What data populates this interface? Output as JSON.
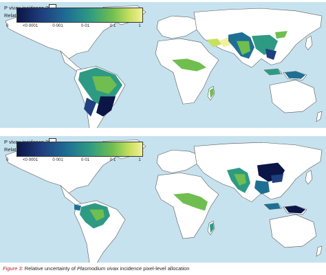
{
  "colors": {
    "ocean": "#c6e2ee",
    "land_no_data": "#ffffff",
    "border": "#555555",
    "ramp": [
      "#0b1546",
      "#1f3f7f",
      "#1f6f95",
      "#2e9a83",
      "#6fbe4f",
      "#c7e060",
      "#f4ef9a"
    ]
  },
  "panels": [
    {
      "legend_title": "P vivax incidence 2005",
      "legend_subtitle": "Relative uncertainty",
      "zero_label": "0",
      "ticks": [
        "<0·0001",
        "0·001",
        "0·01",
        "0·1",
        "1"
      ]
    },
    {
      "legend_title": "P vivax incidence 2017",
      "legend_subtitle": "Relative uncertainty",
      "zero_label": "0",
      "ticks": [
        "<0·0001",
        "0·001",
        "0·01",
        "0·1",
        "1"
      ]
    }
  ],
  "caption": {
    "figure_label": "Figure 3:",
    "text_before": " Relative uncertainty of ",
    "species": "Plasmodium vivax",
    "text_after": " incidence pixel-level allocation"
  }
}
